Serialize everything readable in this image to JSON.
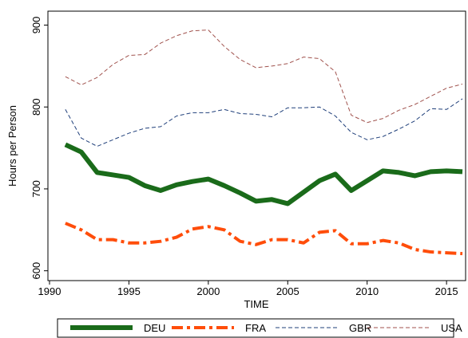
{
  "chart_data": {
    "type": "line",
    "x_label": "TIME",
    "y_label": "Hours per Person",
    "x": [
      1991,
      1992,
      1993,
      1994,
      1995,
      1996,
      1997,
      1998,
      1999,
      2000,
      2001,
      2002,
      2003,
      2004,
      2005,
      2006,
      2007,
      2008,
      2009,
      2010,
      2011,
      2012,
      2013,
      2014,
      2015,
      2016
    ],
    "series": [
      {
        "name": "DEU",
        "color": "#1a6b1a",
        "linewidth": 6,
        "dash": "none",
        "values": [
          754,
          745,
          720,
          717,
          714,
          704,
          698,
          705,
          709,
          712,
          704,
          695,
          685,
          687,
          682,
          696,
          710,
          718,
          698,
          710,
          722,
          720,
          716,
          721,
          722,
          721
        ]
      },
      {
        "name": "FRA",
        "color": "#ff4d0a",
        "linewidth": 4,
        "dash": "14 5 4 5",
        "values": [
          658,
          650,
          638,
          638,
          634,
          634,
          636,
          641,
          651,
          654,
          650,
          636,
          632,
          638,
          638,
          634,
          647,
          649,
          633,
          633,
          637,
          634,
          626,
          623,
          622,
          621
        ]
      },
      {
        "name": "GBR",
        "color": "#1f3f7a",
        "linewidth": 1,
        "dash": "5 3",
        "values": [
          797,
          762,
          752,
          760,
          768,
          774,
          776,
          789,
          793,
          793,
          797,
          792,
          791,
          788,
          799,
          799,
          800,
          789,
          769,
          760,
          764,
          773,
          783,
          798,
          797,
          810
        ]
      },
      {
        "name": "USA",
        "color": "#a0524d",
        "linewidth": 1,
        "dash": "5 3",
        "values": [
          837,
          827,
          836,
          852,
          863,
          864,
          878,
          887,
          893,
          894,
          874,
          858,
          848,
          850,
          853,
          861,
          859,
          843,
          790,
          781,
          786,
          796,
          803,
          813,
          823,
          828
        ]
      }
    ],
    "xlim": [
      1989.9,
      2016.2
    ],
    "ylim": [
      588,
      917
    ],
    "xticks": [
      1990,
      1995,
      2000,
      2005,
      2010,
      2015
    ],
    "yticks": [
      600,
      700,
      800,
      900
    ],
    "legend": "bottom"
  }
}
